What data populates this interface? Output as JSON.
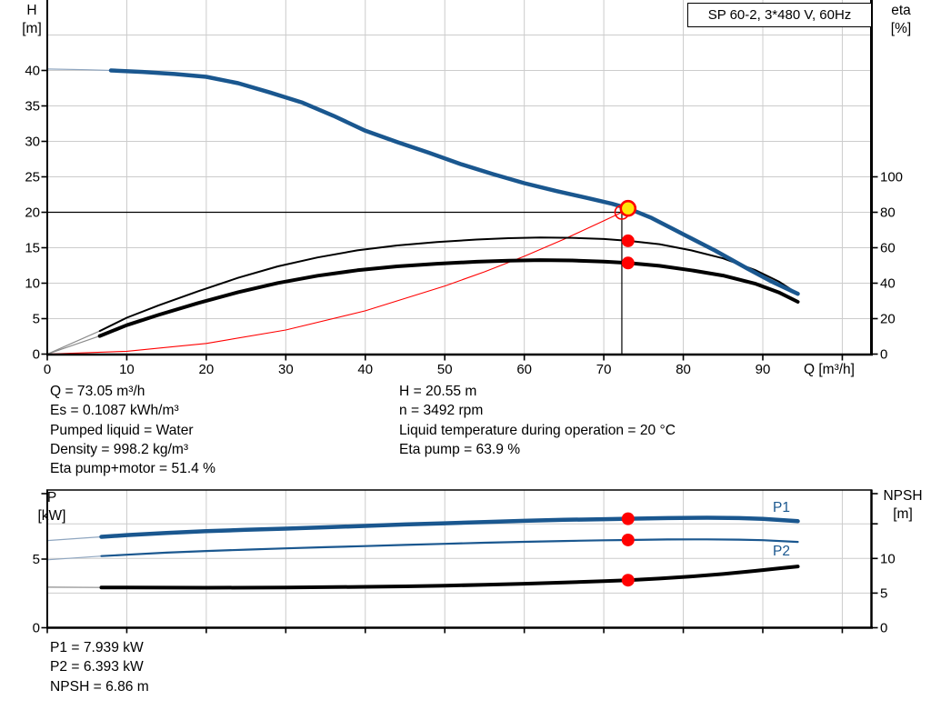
{
  "title_box": {
    "label": "SP 60-2, 3*480 V, 60Hz"
  },
  "colors": {
    "curve_blue": "#1a578f",
    "curve_black": "#000000",
    "red": "#ff0000",
    "yellow": "#ffe60a",
    "grid": "#cccccc",
    "thin_gray": "#8c8c8c",
    "thin_blue": "#8fa6c0",
    "axis": "#000000"
  },
  "axis_labels": {
    "h_top": "H",
    "h_unit": "[m]",
    "eta_top": "eta",
    "eta_unit": "[%]",
    "q": "Q [m³/h]",
    "p_top": "P",
    "p_unit": "[kW]",
    "npsh_top": "NPSH",
    "npsh_unit": "[m]"
  },
  "info_left": [
    "Q = 73.05 m³/h",
    "Es = 0.1087 kWh/m³",
    "Pumped liquid = Water",
    "Density = 998.2 kg/m³",
    "Eta pump+motor = 51.4 %"
  ],
  "info_right": [
    "H = 20.55 m",
    "n = 3492 rpm",
    "Liquid temperature during operation = 20 °C",
    "Eta pump = 63.9 %"
  ],
  "info_bottom": [
    "P1 = 7.939 kW",
    "P2 = 6.393 kW",
    "NPSH = 6.86 m"
  ],
  "chart_data": [
    {
      "type": "line",
      "title": "SP 60-2, 3*480 V, 60Hz",
      "xlabel": "Q [m³/h]",
      "ylabel_left": "H [m]",
      "ylabel_right": "eta [%]",
      "x_range": [
        0,
        103.6
      ],
      "ylim_left": [
        0,
        50
      ],
      "ylim_right": [
        0,
        100
      ],
      "x_tick_labels": [
        0,
        10,
        20,
        30,
        40,
        50,
        60,
        70,
        80,
        90
      ],
      "x_grid": [
        10,
        20,
        30,
        40,
        50,
        60,
        70,
        80,
        90,
        100
      ],
      "y_left_ticks": [
        0,
        5,
        10,
        15,
        20,
        25,
        30,
        35,
        40
      ],
      "y_left_grid": [
        5,
        10,
        15,
        20,
        25,
        30,
        35,
        40,
        45
      ],
      "y_right_ticks": [
        0,
        20,
        40,
        60,
        80,
        100
      ],
      "grid": true,
      "crosshair": {
        "h": 20,
        "q": 72.27
      },
      "series": [
        {
          "name": "system-curve",
          "axis": "H",
          "color": "red",
          "width": 1.1,
          "thin_until": 0,
          "points": [
            [
              0,
              0
            ],
            [
              10,
              0.4
            ],
            [
              20,
              1.5
            ],
            [
              30,
              3.4
            ],
            [
              40,
              6.1
            ],
            [
              50,
              9.6
            ],
            [
              55,
              11.6
            ],
            [
              60,
              13.8
            ],
            [
              65,
              16.2
            ],
            [
              70,
              18.8
            ],
            [
              72.27,
              20
            ],
            [
              73.05,
              20.55
            ]
          ]
        },
        {
          "name": "eta-pump-curve",
          "axis": "eta",
          "color": "black",
          "width": 2,
          "thin_until": 6.6,
          "points": [
            [
              0,
              0
            ],
            [
              6.6,
              13
            ],
            [
              10,
              20.5
            ],
            [
              14,
              27.5
            ],
            [
              19,
              35.5
            ],
            [
              24,
              43
            ],
            [
              29,
              49.5
            ],
            [
              34,
              54.5
            ],
            [
              39,
              58.5
            ],
            [
              44,
              61.3
            ],
            [
              49,
              63.2
            ],
            [
              54,
              64.6
            ],
            [
              58,
              65.4
            ],
            [
              62,
              65.8
            ],
            [
              66,
              65.6
            ],
            [
              70,
              64.9
            ],
            [
              73.05,
              63.9
            ],
            [
              77,
              62
            ],
            [
              81,
              58.5
            ],
            [
              85,
              54
            ],
            [
              89,
              47.5
            ],
            [
              92,
              41
            ],
            [
              94.4,
              34
            ]
          ]
        },
        {
          "name": "eta-pump-motor-curve",
          "axis": "eta",
          "color": "black",
          "width": 4,
          "thin_until": 6.6,
          "points": [
            [
              0,
              0
            ],
            [
              6.6,
              10.2
            ],
            [
              10,
              16.3
            ],
            [
              14,
              22.1
            ],
            [
              19,
              28.8
            ],
            [
              24,
              34.9
            ],
            [
              29,
              40.1
            ],
            [
              34,
              44.2
            ],
            [
              39,
              47.3
            ],
            [
              44,
              49.5
            ],
            [
              49,
              51
            ],
            [
              54,
              52.1
            ],
            [
              58,
              52.7
            ],
            [
              62,
              53
            ],
            [
              66,
              52.8
            ],
            [
              70,
              52.2
            ],
            [
              73.05,
              51.4
            ],
            [
              77,
              49.8
            ],
            [
              81,
              47.3
            ],
            [
              85,
              44.3
            ],
            [
              89,
              39.8
            ],
            [
              92,
              34.8
            ],
            [
              94.4,
              29.5
            ]
          ]
        },
        {
          "name": "head-curve",
          "axis": "H",
          "color": "blue",
          "width": 4.5,
          "thin_until": 7,
          "points": [
            [
              0,
              40.2
            ],
            [
              5,
              40.1
            ],
            [
              8,
              40.0
            ],
            [
              12,
              39.8
            ],
            [
              16,
              39.5
            ],
            [
              20,
              39.1
            ],
            [
              24,
              38.2
            ],
            [
              28,
              36.9
            ],
            [
              32,
              35.5
            ],
            [
              36,
              33.6
            ],
            [
              40,
              31.5
            ],
            [
              44,
              29.9
            ],
            [
              48,
              28.4
            ],
            [
              52,
              26.8
            ],
            [
              56,
              25.4
            ],
            [
              60,
              24.1
            ],
            [
              64,
              23.0
            ],
            [
              68,
              22.0
            ],
            [
              71,
              21.2
            ],
            [
              73.05,
              20.55
            ],
            [
              76,
              19.2
            ],
            [
              80,
              16.9
            ],
            [
              84,
              14.6
            ],
            [
              88,
              12.1
            ],
            [
              91,
              10.3
            ],
            [
              94.4,
              8.5
            ]
          ]
        }
      ],
      "markers": [
        {
          "name": "requested-duty-point",
          "style": "open-red",
          "axis": "H",
          "q": 72.27,
          "v": 20
        },
        {
          "name": "duty-point",
          "style": "yellow",
          "axis": "H",
          "q": 73.05,
          "v": 20.55
        },
        {
          "name": "eta-pump-point",
          "style": "red",
          "axis": "eta",
          "q": 73.05,
          "v": 63.9
        },
        {
          "name": "eta-pump-motor-point",
          "style": "red",
          "axis": "eta",
          "q": 73.05,
          "v": 51.4
        }
      ]
    },
    {
      "type": "line",
      "xlabel": "",
      "ylabel_left": "P [kW]",
      "ylabel_right": "NPSH [m]",
      "x_range": [
        0,
        103.6
      ],
      "ylim_left": [
        0,
        10
      ],
      "ylim_right": [
        0,
        20
      ],
      "x_grid": [
        10,
        20,
        30,
        40,
        50,
        60,
        70,
        80,
        90,
        100
      ],
      "y_left_ticks": [
        0,
        5
      ],
      "y_right_ticks": [
        [
          0,
          "0"
        ],
        [
          5,
          "5"
        ],
        [
          10,
          "10"
        ],
        [
          15,
          ""
        ]
      ],
      "y_right_grid": [
        5,
        10,
        15
      ],
      "grid": true,
      "series_labels": {
        "p1": "P1",
        "p2": "P2"
      },
      "series": [
        {
          "name": "npsh-curve",
          "axis": "N",
          "color": "black",
          "width": 4,
          "thin_until": 6.8,
          "points": [
            [
              0,
              5.85
            ],
            [
              6.8,
              5.82
            ],
            [
              10,
              5.8
            ],
            [
              20,
              5.78
            ],
            [
              30,
              5.8
            ],
            [
              40,
              5.9
            ],
            [
              45,
              5.97
            ],
            [
              50,
              6.07
            ],
            [
              55,
              6.2
            ],
            [
              60,
              6.35
            ],
            [
              65,
              6.52
            ],
            [
              70,
              6.72
            ],
            [
              73.05,
              6.86
            ],
            [
              77,
              7.1
            ],
            [
              81,
              7.4
            ],
            [
              85,
              7.75
            ],
            [
              89,
              8.2
            ],
            [
              92,
              8.55
            ],
            [
              94.4,
              8.85
            ]
          ]
        },
        {
          "name": "p2-curve",
          "axis": "P",
          "color": "blue",
          "width": 2.2,
          "thin_until": 6.8,
          "points": [
            [
              0,
              4.95
            ],
            [
              6.8,
              5.22
            ],
            [
              10,
              5.32
            ],
            [
              15,
              5.47
            ],
            [
              20,
              5.59
            ],
            [
              25,
              5.69
            ],
            [
              30,
              5.78
            ],
            [
              35,
              5.87
            ],
            [
              40,
              5.95
            ],
            [
              45,
              6.03
            ],
            [
              50,
              6.11
            ],
            [
              55,
              6.19
            ],
            [
              60,
              6.26
            ],
            [
              65,
              6.32
            ],
            [
              70,
              6.37
            ],
            [
              73.05,
              6.39
            ],
            [
              78,
              6.43
            ],
            [
              83,
              6.44
            ],
            [
              87,
              6.42
            ],
            [
              90,
              6.38
            ],
            [
              94.4,
              6.25
            ]
          ]
        },
        {
          "name": "p1-curve",
          "axis": "P",
          "color": "blue",
          "width": 4.5,
          "thin_until": 6.8,
          "points": [
            [
              0,
              6.35
            ],
            [
              6.8,
              6.62
            ],
            [
              10,
              6.75
            ],
            [
              15,
              6.9
            ],
            [
              20,
              7.03
            ],
            [
              25,
              7.13
            ],
            [
              30,
              7.22
            ],
            [
              35,
              7.32
            ],
            [
              40,
              7.42
            ],
            [
              45,
              7.52
            ],
            [
              50,
              7.61
            ],
            [
              55,
              7.7
            ],
            [
              60,
              7.79
            ],
            [
              65,
              7.86
            ],
            [
              70,
              7.91
            ],
            [
              73.05,
              7.94
            ],
            [
              78,
              7.99
            ],
            [
              83,
              8.01
            ],
            [
              87,
              7.99
            ],
            [
              90,
              7.93
            ],
            [
              94.4,
              7.76
            ]
          ]
        }
      ],
      "markers": [
        {
          "name": "p1-point",
          "style": "red",
          "axis": "P",
          "q": 73.05,
          "v": 7.939
        },
        {
          "name": "p2-point",
          "style": "red",
          "axis": "P",
          "q": 73.05,
          "v": 6.393
        },
        {
          "name": "npsh-point",
          "style": "red",
          "axis": "N",
          "q": 73.05,
          "v": 6.86
        }
      ]
    }
  ]
}
